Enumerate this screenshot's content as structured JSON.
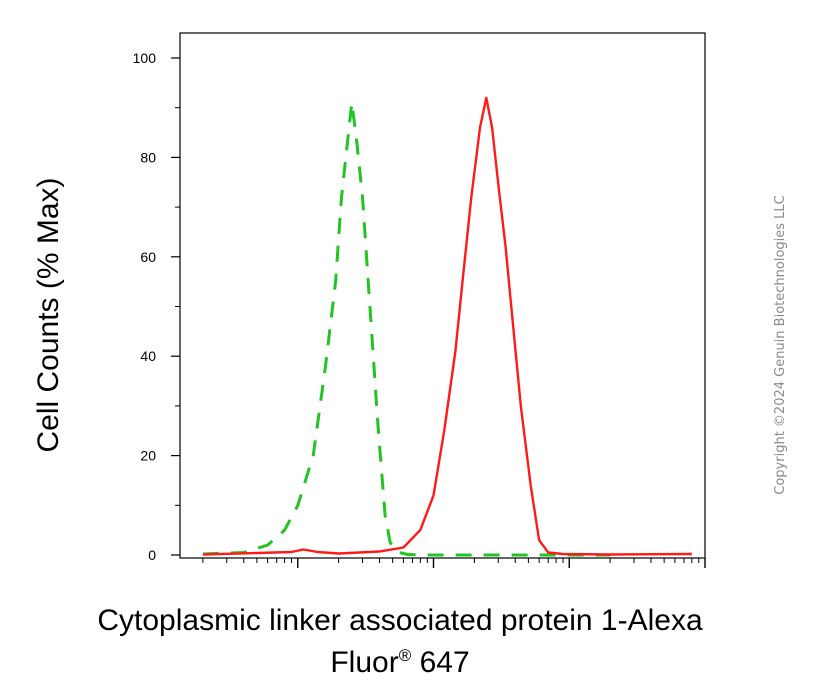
{
  "chart_data": {
    "type": "line",
    "xlabel_line1": "Cytoplasmic linker associated protein 1-Alexa",
    "xlabel_line2_main": "Fluor",
    "xlabel_line2_sup": "®",
    "xlabel_line2_tail": " 647",
    "ylabel": "Cell Counts (% Max)",
    "x_scale": "log",
    "xlim": [
      10,
      100000
    ],
    "ylim": [
      0,
      105
    ],
    "y_ticks": [
      0,
      20,
      40,
      60,
      80,
      100
    ],
    "y_tick_labels": [
      "0",
      "20",
      "40",
      "60",
      "80",
      "100"
    ],
    "grid": false,
    "series": [
      {
        "color": "#22c322",
        "style": "dashed",
        "points": [
          [
            20,
            0.2
          ],
          [
            40,
            0.5
          ],
          [
            60,
            2
          ],
          [
            80,
            5
          ],
          [
            100,
            10
          ],
          [
            130,
            20
          ],
          [
            160,
            38
          ],
          [
            190,
            55
          ],
          [
            210,
            72
          ],
          [
            230,
            82
          ],
          [
            250,
            91
          ],
          [
            270,
            84
          ],
          [
            300,
            72
          ],
          [
            340,
            50
          ],
          [
            390,
            26
          ],
          [
            440,
            8
          ],
          [
            480,
            2.5
          ],
          [
            540,
            0.6
          ],
          [
            650,
            0.1
          ],
          [
            900,
            0
          ],
          [
            5000,
            0
          ],
          [
            20000,
            0
          ]
        ]
      },
      {
        "color": "#ff1a1a",
        "style": "solid",
        "points": [
          [
            20,
            0.1
          ],
          [
            50,
            0.4
          ],
          [
            90,
            0.6
          ],
          [
            110,
            1.1
          ],
          [
            140,
            0.6
          ],
          [
            200,
            0.3
          ],
          [
            400,
            0.7
          ],
          [
            600,
            1.5
          ],
          [
            800,
            5
          ],
          [
            1000,
            12
          ],
          [
            1200,
            25
          ],
          [
            1450,
            41
          ],
          [
            1650,
            56
          ],
          [
            1900,
            72
          ],
          [
            2200,
            86
          ],
          [
            2450,
            92
          ],
          [
            2700,
            86
          ],
          [
            3050,
            73
          ],
          [
            3400,
            62
          ],
          [
            3800,
            48
          ],
          [
            4400,
            30
          ],
          [
            5200,
            14
          ],
          [
            6000,
            3
          ],
          [
            7000,
            0.5
          ],
          [
            9000,
            0.2
          ],
          [
            20000,
            0.1
          ],
          [
            80000,
            0.2
          ]
        ]
      }
    ]
  },
  "watermark": "Copyright ©2024 Genuin Biotechnologies LLC"
}
